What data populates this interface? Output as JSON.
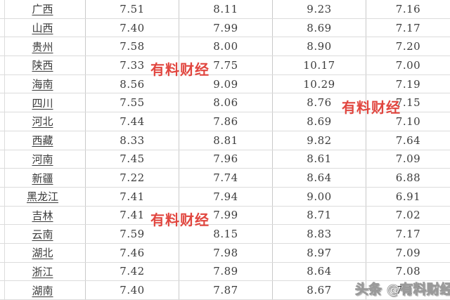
{
  "table": {
    "description_note": "fuel price table, no header row visible",
    "rows": [
      {
        "province": "广西",
        "values": [
          "7.51",
          "8.11",
          "9.23",
          "7.16"
        ]
      },
      {
        "province": "山西",
        "values": [
          "7.40",
          "7.99",
          "8.69",
          "7.17"
        ]
      },
      {
        "province": "贵州",
        "values": [
          "7.58",
          "8.00",
          "8.90",
          "7.20"
        ]
      },
      {
        "province": "陕西",
        "values": [
          "7.33",
          "7.75",
          "10.17",
          "7.00"
        ]
      },
      {
        "province": "海南",
        "values": [
          "8.56",
          "9.09",
          "10.29",
          "7.19"
        ]
      },
      {
        "province": "四川",
        "values": [
          "7.55",
          "8.06",
          "8.76",
          "7.15"
        ]
      },
      {
        "province": "河北",
        "values": [
          "7.44",
          "7.86",
          "8.69",
          "7.10"
        ]
      },
      {
        "province": "西藏",
        "values": [
          "8.33",
          "8.81",
          "9.82",
          "7.64"
        ]
      },
      {
        "province": "河南",
        "values": [
          "7.45",
          "7.96",
          "8.61",
          "7.09"
        ]
      },
      {
        "province": "新疆",
        "values": [
          "7.22",
          "7.74",
          "8.64",
          "6.88"
        ]
      },
      {
        "province": "黑龙江",
        "values": [
          "7.41",
          "7.94",
          "9.00",
          "6.91"
        ]
      },
      {
        "province": "吉林",
        "values": [
          "7.41",
          "7.99",
          "8.71",
          "7.02"
        ]
      },
      {
        "province": "云南",
        "values": [
          "7.59",
          "8.15",
          "8.83",
          "7.17"
        ]
      },
      {
        "province": "湖北",
        "values": [
          "7.46",
          "7.98",
          "8.97",
          "7.09"
        ]
      },
      {
        "province": "浙江",
        "values": [
          "7.42",
          "7.89",
          "8.64",
          "7.08"
        ]
      },
      {
        "province": "湖南",
        "values": [
          "7.40",
          "7.87",
          "8.67",
          "7.17"
        ]
      }
    ]
  },
  "watermarks": {
    "red_label": "有料财经",
    "bottom_label": "头条 @有料财经"
  },
  "colors": {
    "text": "#3c3c3c",
    "grid_horizontal": "#dcdcdc",
    "grid_vertical": "#c9c9c9",
    "watermark_red": "#df372f",
    "watermark_bottom_fill": "#fdfdfd",
    "background": "#ffffff"
  }
}
